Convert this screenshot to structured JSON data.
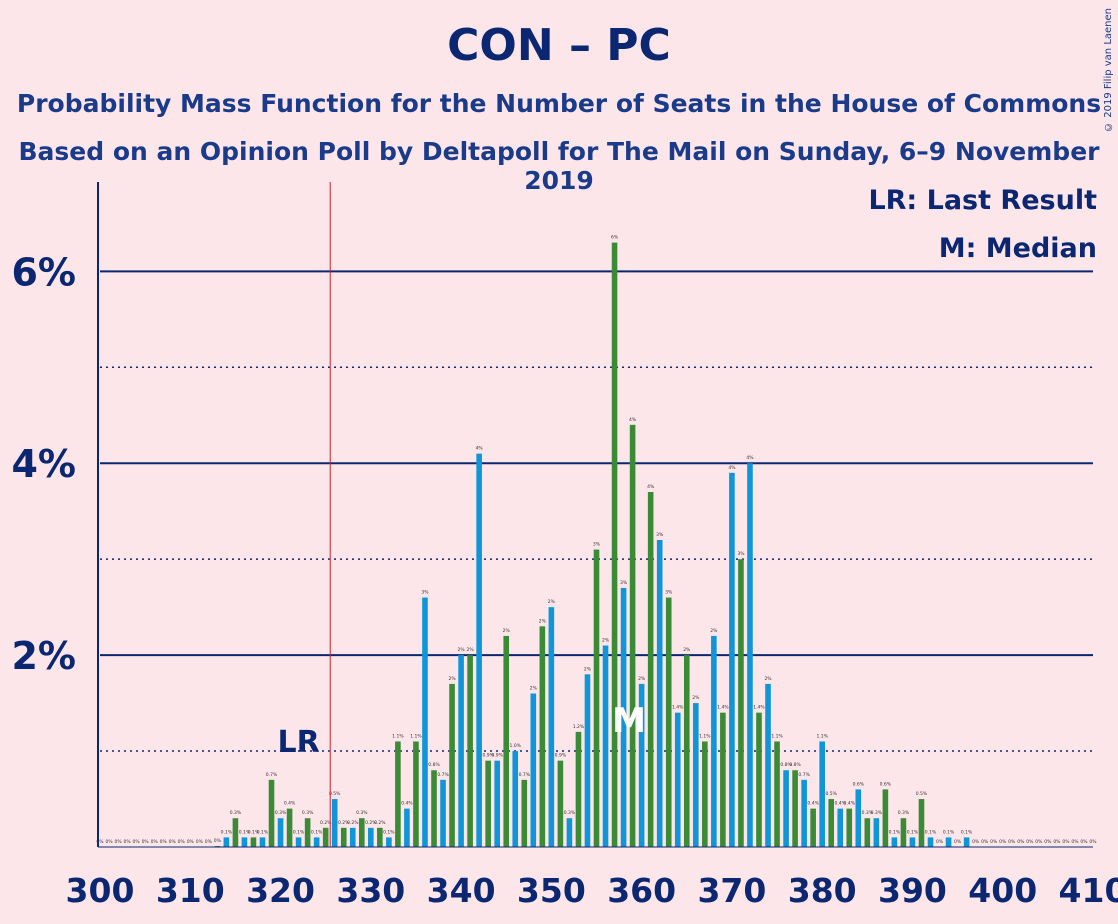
{
  "header": {
    "title": "CON – PC",
    "subtitle1": "Probability Mass Function for the Number of Seats in the House of Commons",
    "subtitle2": "Based on an Opinion Poll by Deltapoll for The Mail on Sunday, 6–9 November 2019",
    "copyright": "© 2019 Filip van Laenen"
  },
  "legend": {
    "lr": "LR: Last Result",
    "median": "M: Median"
  },
  "colors": {
    "background": "#fde6ea",
    "green": "#3b8a35",
    "blue": "#0e96d8",
    "axis": "#0b2772",
    "last_result_line": "#cc1e2c"
  },
  "chart_data": {
    "type": "bar",
    "title": "CON – PC",
    "xlabel": "",
    "ylabel": "",
    "xlim": [
      300,
      410
    ],
    "ylim": [
      0,
      6.9
    ],
    "y_unit": "%",
    "y_ticks": [
      2,
      4,
      6
    ],
    "y_tick_labels": [
      "2%",
      "4%",
      "6%"
    ],
    "x_ticks": [
      300,
      310,
      320,
      330,
      340,
      350,
      360,
      370,
      380,
      390,
      400,
      410
    ],
    "x_tick_labels": [
      "300",
      "310",
      "320",
      "330",
      "340",
      "350",
      "360",
      "370",
      "380",
      "390",
      "400",
      "410"
    ],
    "last_result": 326,
    "last_result_label": "LR",
    "median": 359,
    "median_label": "M",
    "seats": [
      300,
      301,
      302,
      303,
      304,
      305,
      306,
      307,
      308,
      309,
      310,
      311,
      312,
      313,
      314,
      315,
      316,
      317,
      318,
      319,
      320,
      321,
      322,
      323,
      324,
      325,
      326,
      327,
      328,
      329,
      330,
      331,
      332,
      333,
      334,
      335,
      336,
      337,
      338,
      339,
      340,
      341,
      342,
      343,
      344,
      345,
      346,
      347,
      348,
      349,
      350,
      351,
      352,
      353,
      354,
      355,
      356,
      357,
      358,
      359,
      360,
      361,
      362,
      363,
      364,
      365,
      366,
      367,
      368,
      369,
      370,
      371,
      372,
      373,
      374,
      375,
      376,
      377,
      378,
      379,
      380,
      381,
      382,
      383,
      384,
      385,
      386,
      387,
      388,
      389,
      390,
      391,
      392,
      393,
      394,
      395,
      396,
      397,
      398,
      399,
      400,
      401,
      402,
      403,
      404,
      405,
      406,
      407,
      408,
      409,
      410
    ],
    "values": [
      0,
      0,
      0,
      0,
      0,
      0,
      0,
      0,
      0,
      0,
      0,
      0,
      0,
      0.01,
      0.1,
      0.3,
      0.1,
      0.1,
      0.1,
      0.7,
      0.3,
      0.4,
      0.1,
      0.3,
      0.1,
      0.2,
      0.5,
      0.2,
      0.2,
      0.3,
      0.2,
      0.2,
      0.1,
      1.1,
      0.4,
      1.1,
      2.6,
      0.8,
      0.7,
      1.7,
      2.0,
      2.0,
      4.1,
      0.9,
      0.9,
      2.2,
      1.0,
      0.7,
      1.6,
      2.3,
      2.5,
      0.9,
      0.3,
      1.2,
      1.8,
      3.1,
      2.1,
      6.3,
      2.7,
      4.4,
      1.7,
      3.7,
      3.2,
      2.6,
      1.4,
      2.0,
      1.5,
      1.1,
      2.2,
      1.4,
      3.9,
      3.0,
      4.0,
      1.4,
      1.7,
      1.1,
      0.8,
      0.8,
      0.7,
      0.4,
      1.1,
      0.5,
      0.4,
      0.4,
      0.6,
      0.3,
      0.3,
      0.6,
      0.1,
      0.3,
      0.1,
      0.5,
      0.1,
      0,
      0.1,
      0,
      0.1,
      0,
      0,
      0,
      0,
      0,
      0,
      0,
      0,
      0,
      0,
      0,
      0,
      0,
      0
    ],
    "value_labels": [
      "0%",
      "0%",
      "0%",
      "0%",
      "0%",
      "0%",
      "0%",
      "0%",
      "0%",
      "0%",
      "0%",
      "0%",
      "0%",
      "0%",
      "0.1%",
      "0.3%",
      "0.1%",
      "0.1%",
      "0.1%",
      "0.7%",
      "0.3%",
      "0.4%",
      "0.1%",
      "0.3%",
      "0.1%",
      "0.2%",
      "0.5%",
      "0.2%",
      "0.2%",
      "0.3%",
      "0.2%",
      "0.2%",
      "0.1%",
      "1.1%",
      "0.4%",
      "1.1%",
      "3%",
      "0.8%",
      "0.7%",
      "2%",
      "2%",
      "2%",
      "4%",
      "0.9%",
      "0.9%",
      "2%",
      "1.0%",
      "0.7%",
      "2%",
      "2%",
      "2%",
      "0.9%",
      "0.3%",
      "1.2%",
      "2%",
      "3%",
      "2%",
      "6%",
      "3%",
      "4%",
      "2%",
      "4%",
      "3%",
      "3%",
      "1.4%",
      "2%",
      "2%",
      "1.1%",
      "2%",
      "1.4%",
      "4%",
      "3%",
      "4%",
      "1.4%",
      "2%",
      "1.1%",
      "0.8%",
      "0.8%",
      "0.7%",
      "0.4%",
      "1.1%",
      "0.5%",
      "0.4%",
      "0.4%",
      "0.6%",
      "0.3%",
      "0.3%",
      "0.6%",
      "0.1%",
      "0.3%",
      "0.1%",
      "0.5%",
      "0.1%",
      "0%",
      "0.1%",
      "0%",
      "0.1%",
      "0%",
      "0%",
      "0%",
      "0%",
      "0%",
      "0%",
      "0%",
      "0%",
      "0%",
      "0%",
      "0%",
      "0%",
      "0%",
      "0%"
    ],
    "grid": true,
    "legend_position": "top-right"
  }
}
